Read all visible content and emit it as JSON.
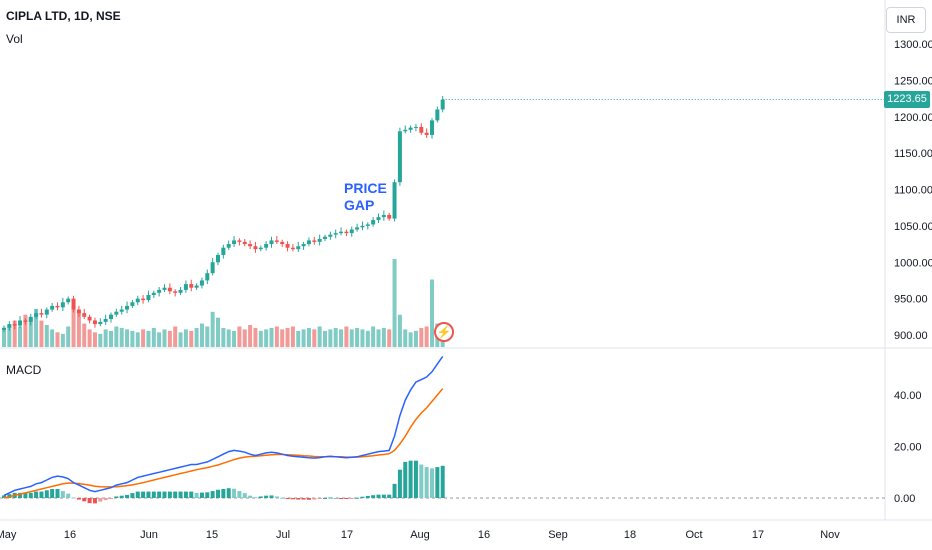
{
  "header": {
    "symbol_label": "CIPLA LTD, 1D, NSE",
    "volume_label": "Vol",
    "currency": "INR"
  },
  "macd_panel": {
    "label": "MACD"
  },
  "annotation": {
    "line1": "PRICE",
    "line2": "GAP"
  },
  "last_price": {
    "value": "1223.65",
    "color": "#26a69a"
  },
  "icons": {
    "alert": "lightning-bolt-icon"
  },
  "colors": {
    "up": "#26a69a",
    "down": "#ef5350",
    "up_vol": "#80cbc4",
    "down_vol": "#f19a98",
    "macd_line": "#2962ff",
    "signal_line": "#ff6d00",
    "annotation": "#2962ff"
  },
  "chart_data": [
    {
      "type": "candlestick",
      "title": "CIPLA LTD, 1D, NSE",
      "x_ticks": [
        "May",
        "16",
        "Jun",
        "15",
        "Jul",
        "17",
        "Aug",
        "16",
        "Sep",
        "18",
        "Oct",
        "17",
        "Nov"
      ],
      "y_ticks": [
        "900.00",
        "950.00",
        "1000.00",
        "1050.00",
        "1100.00",
        "1150.00",
        "1200.00",
        "1250.00",
        "1300.00"
      ],
      "ylim": [
        880,
        1320
      ],
      "series": [
        {
          "name": "price",
          "close": [
            910,
            915,
            913,
            920,
            918,
            925,
            930,
            928,
            935,
            940,
            938,
            945,
            950,
            935,
            930,
            925,
            920,
            915,
            918,
            922,
            928,
            932,
            935,
            940,
            945,
            950,
            948,
            955,
            958,
            962,
            965,
            960,
            958,
            962,
            970,
            965,
            968,
            975,
            985,
            1000,
            1010,
            1020,
            1025,
            1030,
            1028,
            1025,
            1022,
            1018,
            1020,
            1025,
            1030,
            1028,
            1025,
            1020,
            1018,
            1022,
            1025,
            1030,
            1028,
            1032,
            1035,
            1038,
            1040,
            1042,
            1040,
            1045,
            1048,
            1050,
            1052,
            1058,
            1062,
            1065,
            1060,
            1110,
            1180,
            1182,
            1185,
            1186,
            1178,
            1175,
            1195,
            1210,
            1223.65
          ]
        }
      ]
    },
    {
      "type": "bar",
      "title": "Vol",
      "series": [
        {
          "name": "volume",
          "values": [
            12,
            15,
            18,
            14,
            22,
            20,
            26,
            18,
            15,
            12,
            10,
            9,
            14,
            28,
            24,
            16,
            12,
            10,
            9,
            12,
            11,
            14,
            13,
            12,
            11,
            10,
            12,
            11,
            13,
            10,
            12,
            11,
            14,
            10,
            12,
            11,
            13,
            16,
            14,
            24,
            20,
            13,
            12,
            11,
            14,
            12,
            15,
            13,
            11,
            12,
            13,
            14,
            12,
            13,
            14,
            11,
            12,
            13,
            12,
            14,
            11,
            12,
            13,
            12,
            14,
            12,
            13,
            12,
            11,
            14,
            12,
            13,
            12,
            60,
            22,
            12,
            10,
            11,
            13,
            14,
            46,
            16,
            10
          ]
        }
      ]
    },
    {
      "type": "line",
      "title": "MACD",
      "y_ticks": [
        "0.00",
        "20.00",
        "40.00"
      ],
      "ylim": [
        -10,
        56
      ],
      "series": [
        {
          "name": "macd",
          "values": [
            1,
            2,
            3,
            3.5,
            4,
            4.5,
            5.5,
            6,
            7,
            8,
            8.5,
            8.2,
            7.5,
            6,
            5,
            4,
            3,
            2.5,
            3,
            3.5,
            4,
            5,
            5.5,
            6,
            7,
            8,
            8.5,
            9,
            9.5,
            10,
            10.5,
            11,
            11.5,
            12,
            12.5,
            13,
            13,
            13.5,
            14,
            15,
            16,
            17,
            18,
            18.5,
            18.2,
            17.8,
            17,
            16.5,
            17,
            17.5,
            17.8,
            17.5,
            17,
            16.5,
            16.2,
            16,
            15.8,
            15.6,
            15.5,
            15.7,
            16,
            16.2,
            16,
            15.8,
            15.6,
            15.8,
            16,
            16.5,
            17,
            17.5,
            18,
            18.2,
            18.5,
            24,
            32,
            38,
            42,
            45,
            46,
            47,
            49,
            52,
            55
          ]
        },
        {
          "name": "signal",
          "values": [
            0,
            0.5,
            1,
            1.5,
            2,
            2.5,
            3,
            3.5,
            4,
            4.5,
            5,
            5.5,
            5.8,
            5.8,
            5.6,
            5.3,
            5,
            4.6,
            4.4,
            4.3,
            4.3,
            4.4,
            4.6,
            4.8,
            5.1,
            5.5,
            6,
            6.5,
            7,
            7.5,
            8,
            8.5,
            9,
            9.5,
            10,
            10.5,
            11,
            11.4,
            11.8,
            12.3,
            12.8,
            13.5,
            14.2,
            14.9,
            15.5,
            15.9,
            16.1,
            16.2,
            16.4,
            16.6,
            16.8,
            16.9,
            16.9,
            16.8,
            16.7,
            16.6,
            16.4,
            16.3,
            16.1,
            16,
            16,
            16,
            16,
            16,
            15.9,
            15.9,
            15.9,
            16,
            16.2,
            16.4,
            16.7,
            16.9,
            17.2,
            18.5,
            21,
            24,
            27.5,
            30.5,
            33,
            35,
            37.5,
            40,
            42.5
          ]
        },
        {
          "name": "histogram",
          "values": [
            1,
            1.5,
            2,
            2,
            2,
            2,
            2.5,
            2.5,
            3,
            3.5,
            3.5,
            2.7,
            1.7,
            0.2,
            -0.6,
            -1.3,
            -2,
            -2.1,
            -1.4,
            -0.8,
            -0.3,
            0.6,
            0.9,
            1.2,
            1.9,
            2.5,
            2.5,
            2.5,
            2.5,
            2.5,
            2.5,
            2.5,
            2.5,
            2.5,
            2.5,
            2.5,
            2,
            2.1,
            2.2,
            2.7,
            3.2,
            3.5,
            3.8,
            3.6,
            2.7,
            1.9,
            0.9,
            0.3,
            0.6,
            0.9,
            1,
            0.6,
            0.1,
            -0.3,
            -0.5,
            -0.6,
            -0.6,
            -0.7,
            -0.6,
            -0.3,
            0,
            0.2,
            0,
            -0.2,
            -0.3,
            -0.1,
            0.1,
            0.5,
            0.8,
            1.1,
            1.3,
            1.3,
            1.3,
            5.5,
            11,
            14,
            14.5,
            14.5,
            13,
            12,
            11.5,
            12,
            12.5
          ]
        }
      ]
    }
  ]
}
